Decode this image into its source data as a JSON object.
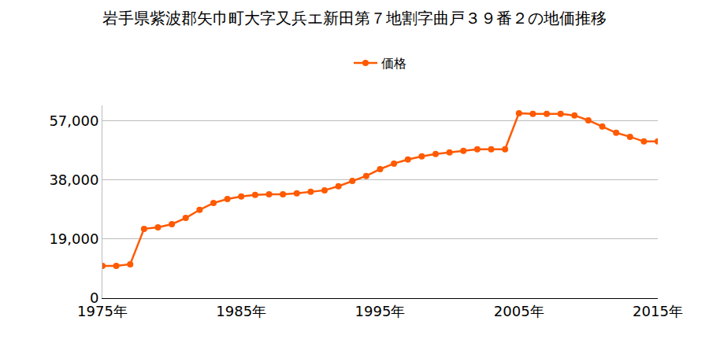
{
  "chart_data": {
    "type": "line",
    "title": "岩手県紫波郡矢巾町大字又兵エ新田第７地割字曲戸３９番２の地価推移",
    "x": [
      1975,
      1976,
      1977,
      1978,
      1979,
      1980,
      1981,
      1982,
      1983,
      1984,
      1985,
      1986,
      1987,
      1988,
      1989,
      1990,
      1991,
      1992,
      1993,
      1994,
      1995,
      1996,
      1997,
      1998,
      1999,
      2000,
      2001,
      2002,
      2003,
      2004,
      2005,
      2006,
      2007,
      2008,
      2009,
      2010,
      2011,
      2012,
      2013,
      2014,
      2015
    ],
    "series": [
      {
        "name": "価格",
        "color": "#ff5a00",
        "values": [
          10400,
          10400,
          10900,
          22300,
          22800,
          23800,
          25800,
          28400,
          30600,
          31900,
          32700,
          33200,
          33400,
          33400,
          33700,
          34200,
          34700,
          36000,
          37700,
          39300,
          41500,
          43300,
          44600,
          45600,
          46400,
          46900,
          47400,
          47900,
          47900,
          47900,
          59500,
          59300,
          59300,
          59300,
          58800,
          57200,
          55200,
          53200,
          51900,
          50400,
          50400
        ]
      }
    ],
    "xlim": [
      1975,
      2015
    ],
    "xticks": [
      {
        "value": 1975,
        "label": "1975年"
      },
      {
        "value": 1985,
        "label": "1985年"
      },
      {
        "value": 1995,
        "label": "1995年"
      },
      {
        "value": 2005,
        "label": "2005年"
      },
      {
        "value": 2015,
        "label": "2015年"
      }
    ],
    "ylim": [
      0,
      62000
    ],
    "yticks": [
      0,
      {
        "value": 19000,
        "label": "19,000"
      },
      {
        "value": 38000,
        "label": "38,000"
      },
      {
        "value": 57000,
        "label": "57,000"
      }
    ],
    "grid": true,
    "legend": "top",
    "marker": "circle",
    "line_style": "solid"
  }
}
